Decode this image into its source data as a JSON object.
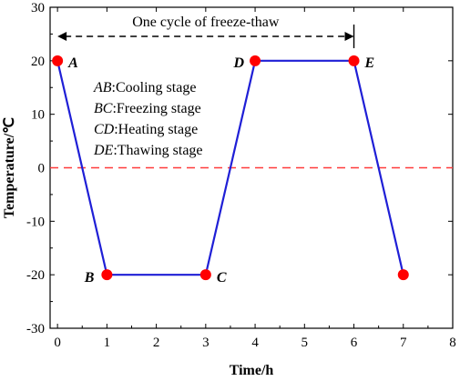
{
  "chart_data": {
    "type": "line",
    "xlabel": "Time/h",
    "ylabel": "Temperature/℃",
    "xlim": [
      -0.15,
      8
    ],
    "ylim": [
      -30,
      30
    ],
    "xticks": [
      "0",
      "1",
      "2",
      "3",
      "4",
      "5",
      "6",
      "7",
      "8"
    ],
    "yticks": [
      "-30",
      "-20",
      "-10",
      "0",
      "10",
      "20",
      "30"
    ],
    "series": [
      {
        "x": [
          0,
          1,
          3,
          4,
          6,
          7
        ],
        "y": [
          20,
          -20,
          -20,
          20,
          20,
          -20
        ]
      }
    ],
    "points": [
      {
        "label": "A",
        "x": 0,
        "y": 20
      },
      {
        "label": "B",
        "x": 1,
        "y": -20
      },
      {
        "label": "C",
        "x": 3,
        "y": -20
      },
      {
        "label": "D",
        "x": 4,
        "y": 20
      },
      {
        "label": "E",
        "x": 6,
        "y": 20
      },
      {
        "label": "",
        "x": 7,
        "y": -20
      }
    ],
    "reference_line": {
      "y": 0,
      "color": "#ff3b3b",
      "style": "dashed"
    },
    "cycle_annotation": {
      "text": "One cycle of freeze-thaw",
      "x_start": 0,
      "x_end": 6
    },
    "legend": [
      {
        "key": "AB",
        "text": ":Cooling stage"
      },
      {
        "key": "BC",
        "text": ":Freezing stage"
      },
      {
        "key": "CD",
        "text": ":Heating stage"
      },
      {
        "key": "DE",
        "text": ":Thawing stage"
      }
    ],
    "colors": {
      "line": "#1f1fd6",
      "point": "#ff0000",
      "zero_line": "#ff3b3b"
    },
    "grid": false
  }
}
